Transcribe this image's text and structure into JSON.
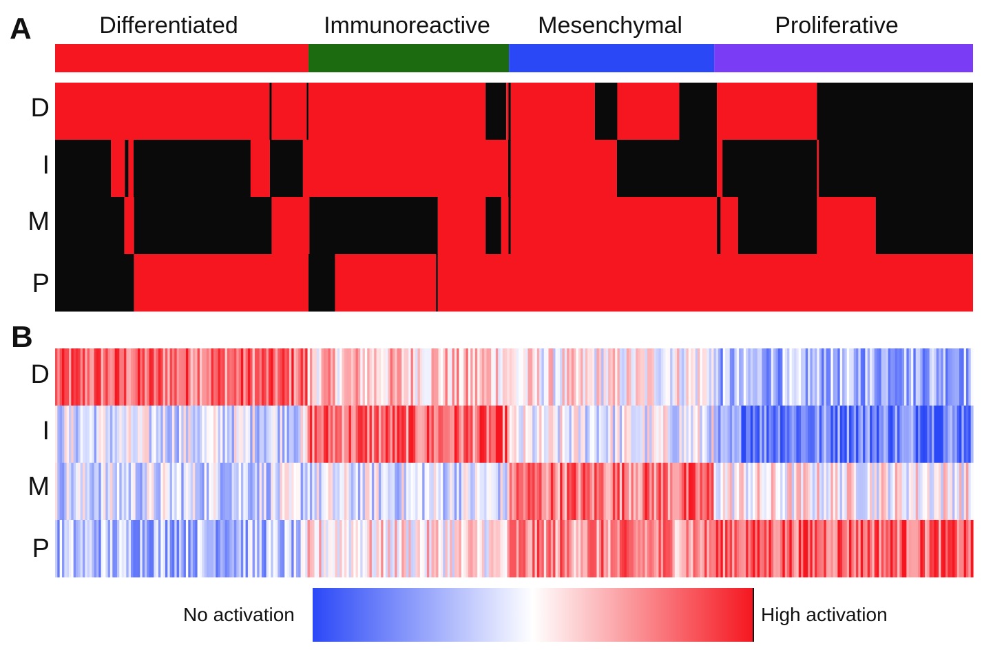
{
  "panel_labels": {
    "a": "A",
    "b": "B"
  },
  "chart_data": [
    {
      "type": "heatmap",
      "panel": "A",
      "description_type": "binary classification matrix",
      "columns": [
        "Differentiated",
        "Immunoreactive",
        "Mesenchymal",
        "Proliferative"
      ],
      "column_colors": [
        "#f5161f",
        "#1d6b10",
        "#2b48f7",
        "#7b3cf5"
      ],
      "rows": [
        "D",
        "I",
        "M",
        "P"
      ],
      "value_colors": {
        "on": "#f5161f",
        "off": "#0a0a0a"
      },
      "row_segments": {
        "D": [
          [
            0.0,
            0.2335,
            1
          ],
          [
            0.2335,
            0.236,
            0
          ],
          [
            0.236,
            0.274,
            1
          ],
          [
            0.274,
            0.276,
            0
          ],
          [
            0.276,
            0.469,
            1
          ],
          [
            0.469,
            0.4915,
            0
          ],
          [
            0.4915,
            0.494,
            1
          ],
          [
            0.494,
            0.4965,
            0
          ],
          [
            0.4965,
            0.588,
            1
          ],
          [
            0.588,
            0.6125,
            0
          ],
          [
            0.6125,
            0.68,
            1
          ],
          [
            0.68,
            0.721,
            0
          ],
          [
            0.721,
            0.83,
            1
          ],
          [
            0.83,
            1.0,
            0
          ]
        ],
        "I": [
          [
            0.0,
            0.061,
            0
          ],
          [
            0.061,
            0.076,
            1
          ],
          [
            0.076,
            0.08,
            0
          ],
          [
            0.08,
            0.0855,
            1
          ],
          [
            0.0855,
            0.213,
            0
          ],
          [
            0.213,
            0.234,
            1
          ],
          [
            0.234,
            0.27,
            0
          ],
          [
            0.27,
            0.4935,
            1
          ],
          [
            0.4935,
            0.4965,
            0
          ],
          [
            0.4965,
            0.612,
            1
          ],
          [
            0.612,
            0.721,
            0
          ],
          [
            0.721,
            0.727,
            1
          ],
          [
            0.727,
            0.83,
            0
          ],
          [
            0.83,
            0.832,
            1
          ],
          [
            0.832,
            1.0,
            0
          ]
        ],
        "M": [
          [
            0.0,
            0.0755,
            0
          ],
          [
            0.0755,
            0.086,
            1
          ],
          [
            0.086,
            0.236,
            0
          ],
          [
            0.236,
            0.277,
            1
          ],
          [
            0.277,
            0.417,
            0
          ],
          [
            0.417,
            0.469,
            1
          ],
          [
            0.469,
            0.486,
            0
          ],
          [
            0.486,
            0.494,
            1
          ],
          [
            0.494,
            0.4965,
            0
          ],
          [
            0.4965,
            0.721,
            1
          ],
          [
            0.721,
            0.725,
            0
          ],
          [
            0.725,
            0.744,
            1
          ],
          [
            0.744,
            0.83,
            0
          ],
          [
            0.83,
            0.894,
            1
          ],
          [
            0.894,
            1.0,
            0
          ]
        ],
        "P": [
          [
            0.0,
            0.086,
            0
          ],
          [
            0.086,
            0.276,
            1
          ],
          [
            0.276,
            0.305,
            0
          ],
          [
            0.305,
            0.415,
            1
          ],
          [
            0.415,
            0.417,
            0
          ],
          [
            0.417,
            1.0,
            1
          ]
        ]
      },
      "group_bounds": [
        0.0,
        0.276,
        0.4945,
        0.718,
        1.0
      ]
    },
    {
      "type": "heatmap",
      "panel": "B",
      "description_type": "continuous activation heatmap",
      "rows": [
        "D",
        "I",
        "M",
        "P"
      ],
      "colorscale": {
        "low": "#2b48f7",
        "mid": "#ffffff",
        "high": "#f5161f"
      },
      "legend": {
        "low_label": "No activation",
        "high_label": "High activation"
      },
      "row_mean_by_group": {
        "D": [
          0.82,
          0.62,
          0.52,
          0.3
        ],
        "I": [
          0.42,
          0.82,
          0.45,
          0.18
        ],
        "M": [
          0.4,
          0.42,
          0.8,
          0.52
        ],
        "P": [
          0.32,
          0.55,
          0.75,
          0.85
        ]
      }
    }
  ]
}
